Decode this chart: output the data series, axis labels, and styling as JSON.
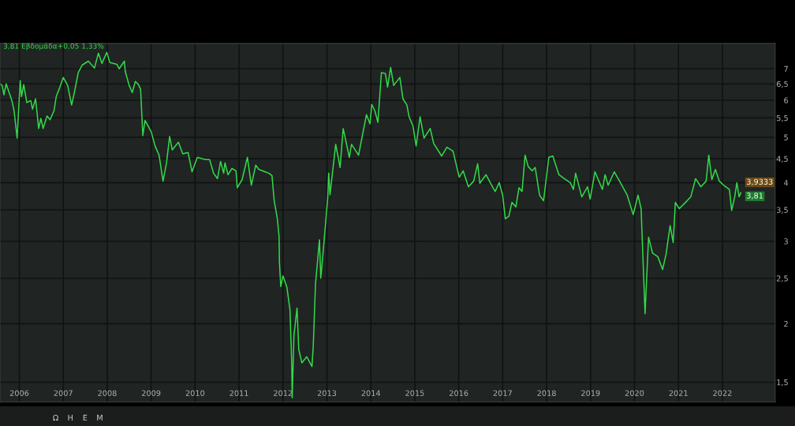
{
  "chart_data": {
    "type": "line",
    "title": "3,81 Εβδομάδα+0,05 1,33%",
    "log": "y",
    "grid": true,
    "legend": false,
    "marker": "none",
    "line_style": "solid",
    "xlim": [
      2005.56,
      2023.2
    ],
    "ylim": [
      1.36,
      7.93
    ],
    "xticks": [
      2006,
      2007,
      2008,
      2009,
      2010,
      2011,
      2012,
      2013,
      2014,
      2015,
      2016,
      2017,
      2018,
      2019,
      2020,
      2021,
      2022
    ],
    "yticks": [
      {
        "value": 1.5,
        "label": "1,5"
      },
      2,
      {
        "value": 2.5,
        "label": "2,5"
      },
      3,
      {
        "value": 3.5,
        "label": "3,5"
      },
      4,
      {
        "value": 4.5,
        "label": "4,5"
      },
      5,
      {
        "value": 5.5,
        "label": "5,5"
      },
      6,
      {
        "value": 6.5,
        "label": "6,5"
      },
      7
    ],
    "annotations": [
      {
        "text": "3,9333",
        "x": 2022.42,
        "y": 3.9333
      },
      {
        "text": "3,81",
        "x": 2022.42,
        "y": 3.81
      },
      "Ω",
      "Η",
      "Ε",
      "Μ"
    ],
    "series": [
      {
        "color": "#33d94a",
        "x": [
          2005.56,
          2005.61,
          2005.65,
          2005.7,
          2005.83,
          2005.88,
          2005.95,
          2006.02,
          2006.05,
          2006.1,
          2006.17,
          2006.26,
          2006.3,
          2006.37,
          2006.44,
          2006.49,
          2006.54,
          2006.63,
          2006.7,
          2006.79,
          2006.84,
          2006.91,
          2007.0,
          2007.1,
          2007.19,
          2007.26,
          2007.34,
          2007.43,
          2007.57,
          2007.71,
          2007.8,
          2007.88,
          2007.99,
          2008.06,
          2008.22,
          2008.27,
          2008.39,
          2008.41,
          2008.5,
          2008.57,
          2008.64,
          2008.71,
          2008.76,
          2008.81,
          2008.86,
          2009.0,
          2009.09,
          2009.18,
          2009.27,
          2009.35,
          2009.42,
          2009.48,
          2009.62,
          2009.72,
          2009.84,
          2009.93,
          2010.05,
          2010.23,
          2010.33,
          2010.42,
          2010.51,
          2010.58,
          2010.65,
          2010.68,
          2010.75,
          2010.84,
          2010.93,
          2010.96,
          2011.07,
          2011.19,
          2011.28,
          2011.38,
          2011.45,
          2011.59,
          2011.68,
          2011.75,
          2011.8,
          2011.87,
          2011.91,
          2011.92,
          2011.95,
          2012.0,
          2012.09,
          2012.16,
          2012.2,
          2012.21,
          2012.25,
          2012.32,
          2012.36,
          2012.43,
          2012.54,
          2012.66,
          2012.69,
          2012.74,
          2012.83,
          2012.86,
          2012.91,
          2012.97,
          2013.02,
          2013.04,
          2013.07,
          2013.2,
          2013.3,
          2013.37,
          2013.51,
          2013.56,
          2013.72,
          2013.9,
          2013.98,
          2014.02,
          2014.09,
          2014.16,
          2014.24,
          2014.33,
          2014.38,
          2014.45,
          2014.52,
          2014.66,
          2014.73,
          2014.82,
          2014.87,
          2014.96,
          2015.03,
          2015.12,
          2015.21,
          2015.35,
          2015.43,
          2015.61,
          2015.73,
          2015.87,
          2016.01,
          2016.1,
          2016.22,
          2016.34,
          2016.43,
          2016.48,
          2016.62,
          2016.78,
          2016.83,
          2016.92,
          2017.0,
          2017.06,
          2017.14,
          2017.21,
          2017.3,
          2017.37,
          2017.44,
          2017.51,
          2017.58,
          2017.67,
          2017.74,
          2017.84,
          2017.93,
          2018.05,
          2018.14,
          2018.28,
          2018.4,
          2018.54,
          2018.61,
          2018.66,
          2018.8,
          2018.93,
          2018.99,
          2019.1,
          2019.27,
          2019.33,
          2019.4,
          2019.54,
          2019.66,
          2019.83,
          2019.97,
          2020.08,
          2020.15,
          2020.18,
          2020.24,
          2020.29,
          2020.32,
          2020.41,
          2020.53,
          2020.64,
          2020.72,
          2020.81,
          2020.88,
          2020.93,
          2021.02,
          2021.16,
          2021.28,
          2021.39,
          2021.51,
          2021.63,
          2021.69,
          2021.76,
          2021.84,
          2021.93,
          2022.03,
          2022.16,
          2022.21,
          2022.28,
          2022.33,
          2022.38,
          2022.42
        ],
        "values": [
          6.5,
          6.45,
          6.16,
          6.5,
          5.99,
          5.7,
          4.98,
          6.61,
          6.11,
          6.48,
          5.93,
          5.99,
          5.74,
          6.04,
          5.22,
          5.49,
          5.22,
          5.55,
          5.45,
          5.7,
          6.11,
          6.35,
          6.71,
          6.45,
          5.86,
          6.28,
          6.87,
          7.13,
          7.27,
          7.03,
          7.56,
          7.19,
          7.59,
          7.22,
          7.16,
          7.0,
          7.27,
          6.92,
          6.45,
          6.23,
          6.58,
          6.48,
          6.33,
          5.04,
          5.43,
          5.14,
          4.79,
          4.58,
          4.03,
          4.41,
          5.02,
          4.7,
          4.88,
          4.61,
          4.64,
          4.22,
          4.53,
          4.48,
          4.48,
          4.19,
          4.08,
          4.44,
          4.19,
          4.41,
          4.16,
          4.29,
          4.24,
          3.9,
          4.06,
          4.53,
          3.95,
          4.36,
          4.27,
          4.22,
          4.19,
          4.14,
          3.66,
          3.36,
          3.08,
          2.69,
          2.4,
          2.53,
          2.39,
          2.14,
          1.63,
          1.39,
          1.89,
          2.16,
          1.76,
          1.65,
          1.7,
          1.62,
          1.8,
          2.43,
          3.02,
          2.5,
          2.82,
          3.28,
          3.73,
          4.19,
          3.77,
          4.83,
          4.31,
          5.22,
          4.53,
          4.83,
          4.58,
          5.59,
          5.34,
          5.88,
          5.7,
          5.38,
          6.87,
          6.84,
          6.4,
          7.05,
          6.45,
          6.71,
          6.04,
          5.86,
          5.53,
          5.28,
          4.79,
          5.53,
          4.98,
          5.22,
          4.85,
          4.56,
          4.76,
          4.67,
          4.11,
          4.24,
          3.92,
          4.03,
          4.39,
          3.99,
          4.16,
          3.9,
          3.83,
          4.0,
          3.76,
          3.35,
          3.39,
          3.63,
          3.55,
          3.9,
          3.83,
          4.58,
          4.33,
          4.24,
          4.31,
          3.76,
          3.66,
          4.53,
          4.56,
          4.16,
          4.08,
          4.0,
          3.87,
          4.19,
          3.73,
          3.92,
          3.69,
          4.22,
          3.87,
          4.16,
          3.95,
          4.22,
          4.03,
          3.77,
          3.42,
          3.76,
          3.52,
          2.96,
          2.1,
          2.66,
          3.06,
          2.83,
          2.78,
          2.61,
          2.82,
          3.24,
          2.98,
          3.63,
          3.52,
          3.63,
          3.73,
          4.08,
          3.92,
          4.03,
          4.58,
          4.06,
          4.27,
          4.03,
          3.95,
          3.87,
          3.49,
          3.73,
          4.0,
          3.73,
          3.81
        ]
      }
    ]
  }
}
